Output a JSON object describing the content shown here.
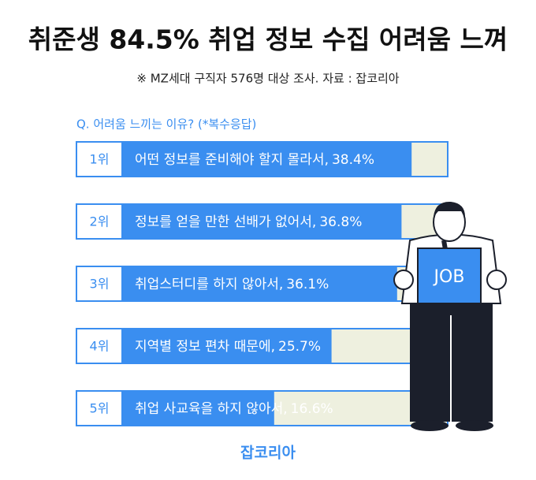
{
  "chart_data": {
    "type": "bar",
    "title": "취준생 84.5% 취업 정보 수집 어려움 느껴",
    "subtitle": "※ MZ세대 구직자 576명 대상 조사. 자료 : 잡코리아",
    "question": "Q. 어려움 느끼는 이유? (*복수응답)",
    "ranks": [
      "1위",
      "2위",
      "3위",
      "4위",
      "5위"
    ],
    "categories": [
      "어떤 정보를 준비해야 할지 몰라서,",
      "정보를 얻을 만한 선배가 없어서,",
      "취업스터디를 하지 않아서,",
      "지역별 정보 편차 때문에,",
      "취업 사교육을 하지 않아서,"
    ],
    "values": [
      38.4,
      36.8,
      36.1,
      25.7,
      16.6
    ],
    "value_labels": [
      "38.4%",
      "36.8%",
      "36.1%",
      "25.7%",
      "16.6%"
    ],
    "color": "#3a8ef0",
    "source": "잡코리아",
    "illustration_sign": "JOB"
  }
}
